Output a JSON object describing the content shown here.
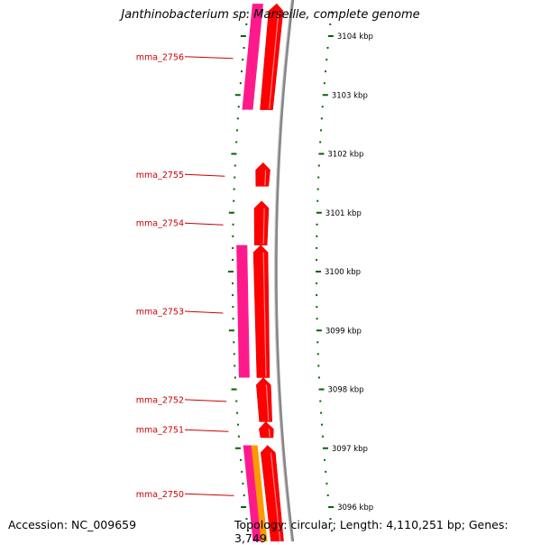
{
  "title": "Janthinobacterium sp. Marseille, complete genome",
  "footer": {
    "accession": "Accession: NC_009659",
    "topology": "Topology: circular; Length: 4,110,251 bp; Genes: 3,749"
  },
  "colors": {
    "gene_red": "#ff0000",
    "gene_magenta": "#ff1a8c",
    "gene_orange": "#ff9900",
    "label_red": "#cc0000",
    "tick_green": "#006600",
    "backbone_gray": "#888888"
  },
  "scale": {
    "unit": "kbp",
    "ticks": [
      {
        "kbp": 3104,
        "label": "3104 kbp"
      },
      {
        "kbp": 3103,
        "label": "3103 kbp"
      },
      {
        "kbp": 3102,
        "label": "3102 kbp"
      },
      {
        "kbp": 3101,
        "label": "3101 kbp"
      },
      {
        "kbp": 3100,
        "label": "3100 kbp"
      },
      {
        "kbp": 3099,
        "label": "3099 kbp"
      },
      {
        "kbp": 3098,
        "label": "3098 kbp"
      },
      {
        "kbp": 3097,
        "label": "3097 kbp"
      },
      {
        "kbp": 3096,
        "label": "3096 kbp"
      }
    ]
  },
  "genes": [
    {
      "name": "mma_2756",
      "start_kbp": 3102.75,
      "end_kbp": 3104.55,
      "track": "forward",
      "color": "red"
    },
    {
      "name": "mma_2755",
      "start_kbp": 3101.45,
      "end_kbp": 3101.85,
      "track": "forward",
      "color": "red"
    },
    {
      "name": "mma_2754",
      "start_kbp": 3100.45,
      "end_kbp": 3101.2,
      "track": "forward",
      "color": "red"
    },
    {
      "name": "mma_2753",
      "start_kbp": 3098.2,
      "end_kbp": 3100.45,
      "track": "forward",
      "color": "red"
    },
    {
      "name": "mma_2752",
      "start_kbp": 3097.45,
      "end_kbp": 3098.2,
      "track": "forward",
      "color": "red"
    },
    {
      "name": "mma_2751",
      "start_kbp": 3097.18,
      "end_kbp": 3097.45,
      "track": "forward",
      "color": "red"
    },
    {
      "name": "mma_2750",
      "start_kbp": 3095.4,
      "end_kbp": 3097.05,
      "track": "forward",
      "color": "red"
    }
  ],
  "features": [
    {
      "start_kbp": 3102.75,
      "end_kbp": 3104.55,
      "track": "outer",
      "color": "magenta"
    },
    {
      "start_kbp": 3098.2,
      "end_kbp": 3100.45,
      "track": "outer",
      "color": "magenta"
    },
    {
      "start_kbp": 3095.4,
      "end_kbp": 3097.05,
      "track": "outer",
      "color": "magenta"
    },
    {
      "start_kbp": 3095.4,
      "end_kbp": 3097.05,
      "track": "middle",
      "color": "orange"
    }
  ]
}
